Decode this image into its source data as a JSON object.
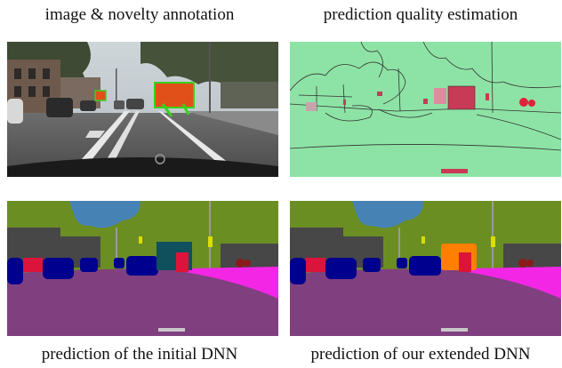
{
  "captions": {
    "top_left": "image & novelty annotation",
    "top_right": "prediction quality estimation",
    "bottom_left": "prediction of the initial DNN",
    "bottom_right": "prediction of our extended DNN"
  },
  "colors": {
    "road": "#80407f",
    "sidewalk": "#f426e6",
    "building": "#474747",
    "vegetation": "#6b8e23",
    "sky": "#4682b4",
    "car": "#00008e",
    "person": "#dc143c",
    "pole": "#999999",
    "traffic_sign": "#dcdc00",
    "novel_truck_initial": "#104f5c",
    "novel_truck_extended": "#ff7f00",
    "quality_good": "#8de3a5",
    "quality_bad": "#c83a55",
    "novelty_annotation": "#e2501a"
  }
}
